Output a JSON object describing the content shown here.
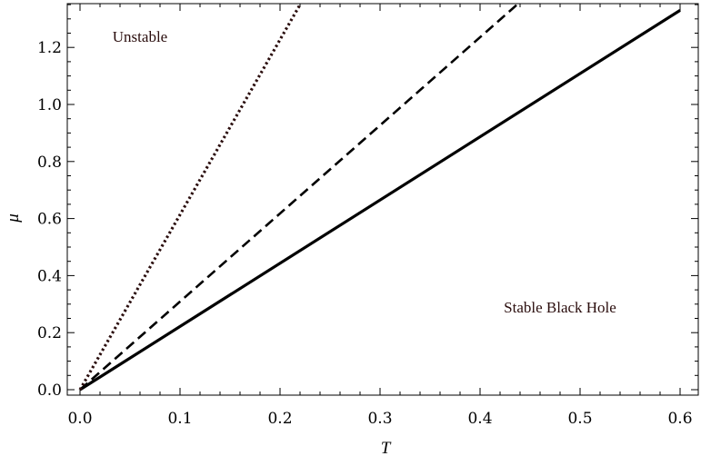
{
  "chart_data": {
    "type": "line",
    "title": "",
    "xlabel": "T",
    "ylabel": "μ",
    "xlim": [
      0.0,
      0.6
    ],
    "ylim": [
      0.0,
      1.35
    ],
    "x_ticks": [
      "0.0",
      "0.1",
      "0.2",
      "0.3",
      "0.4",
      "0.5",
      "0.6"
    ],
    "y_ticks": [
      "0.0",
      "0.2",
      "0.4",
      "0.6",
      "0.8",
      "1.0",
      "1.2"
    ],
    "grid": false,
    "legend": "none",
    "series": [
      {
        "style": "solid",
        "color": "#000000",
        "x": [
          0.0,
          0.6
        ],
        "y": [
          0.0,
          1.33
        ]
      },
      {
        "style": "dashed",
        "color": "#000000",
        "x": [
          0.0,
          0.437
        ],
        "y": [
          0.0,
          1.35
        ]
      },
      {
        "style": "dotted",
        "color": "#2a0d0d",
        "x": [
          0.0,
          0.22
        ],
        "y": [
          0.0,
          1.35
        ]
      }
    ],
    "annotations": [
      {
        "text": "Unstable",
        "x": 0.06,
        "y": 1.22
      },
      {
        "text": "Stable Black Hole",
        "x": 0.48,
        "y": 0.27
      }
    ]
  }
}
